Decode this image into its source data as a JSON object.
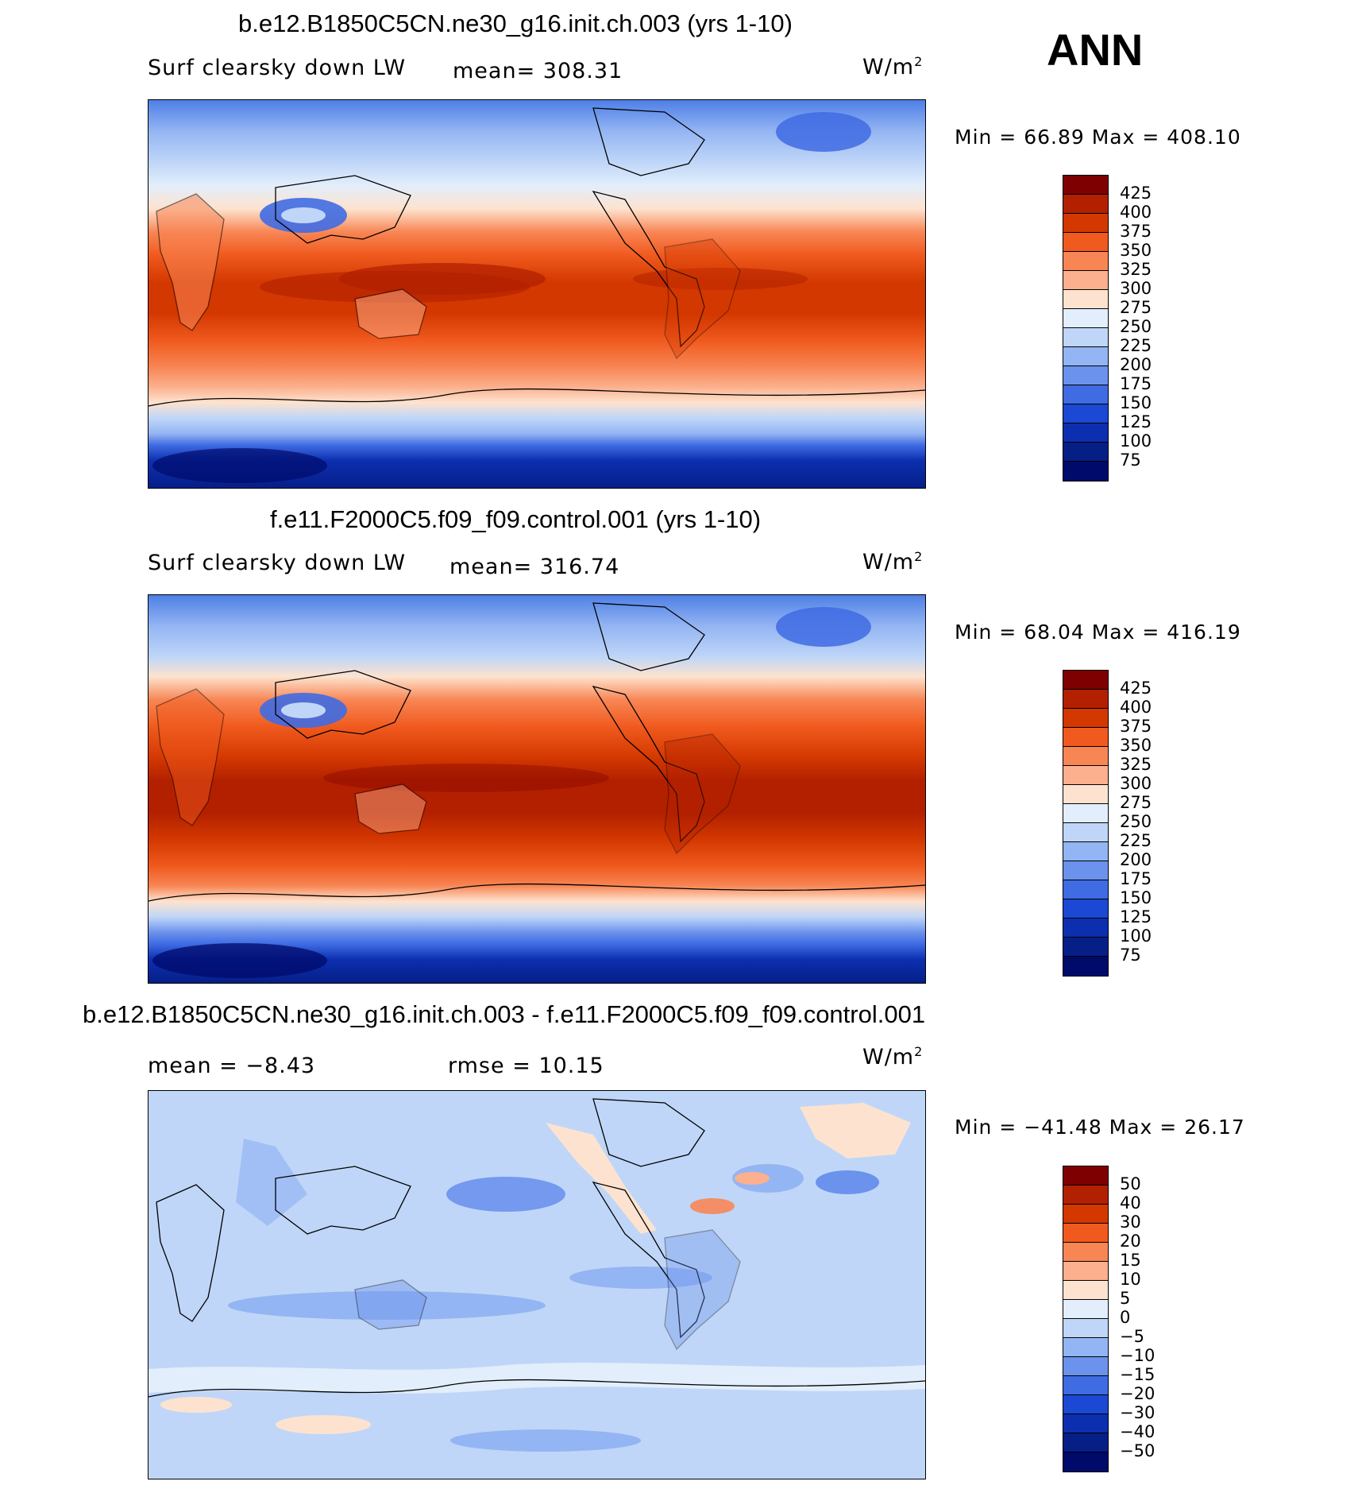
{
  "season": "ANN",
  "panels": [
    {
      "title": "b.e12.B1850C5CN.ne30_g16.init.ch.003 (yrs 1-10)",
      "left_label": "Surf clearsky down LW",
      "center_label": "mean= 308.31",
      "units": "W/m",
      "units_sup": "2",
      "minmax": "Min =   66.89 Max = 408.10"
    },
    {
      "title": "f.e11.F2000C5.f09_f09.control.001 (yrs 1-10)",
      "left_label": "Surf clearsky down LW",
      "center_label": "mean= 316.74",
      "units": "W/m",
      "units_sup": "2",
      "minmax": "Min =   68.04 Max = 416.19"
    },
    {
      "title": "b.e12.B1850C5CN.ne30_g16.init.ch.003 - f.e11.F2000C5.f09_f09.control.001",
      "left_label": "mean =   −8.43",
      "center_label": "rmse =   10.15",
      "units": "W/m",
      "units_sup": "2",
      "minmax": "Min = −41.48 Max =   26.17"
    }
  ],
  "chart_data": [
    {
      "type": "heatmap",
      "title": "b.e12.B1850C5CN.ne30_g16.init.ch.003 (yrs 1-10)",
      "variable": "Surf clearsky down LW",
      "units": "W/m2",
      "mean": 308.31,
      "min": 66.89,
      "max": 408.1,
      "colorbar_levels": [
        425,
        400,
        375,
        350,
        325,
        300,
        275,
        250,
        225,
        200,
        175,
        150,
        125,
        100,
        75
      ],
      "colorbar_labels": [
        "425",
        "400",
        "375",
        "350",
        "325",
        "300",
        "275",
        "250",
        "225",
        "200",
        "175",
        "150",
        "125",
        "100",
        "75"
      ],
      "colors": [
        "#7f0000",
        "#b22000",
        "#d33800",
        "#f05a1e",
        "#f88655",
        "#fcb08d",
        "#fde3cf",
        "#e2eefb",
        "#bfd6f8",
        "#94b5f3",
        "#6b92ec",
        "#3f6be3",
        "#1b49d4",
        "#0c2fb0",
        "#061f87",
        "#000a6b"
      ]
    },
    {
      "type": "heatmap",
      "title": "f.e11.F2000C5.f09_f09.control.001 (yrs 1-10)",
      "variable": "Surf clearsky down LW",
      "units": "W/m2",
      "mean": 316.74,
      "min": 68.04,
      "max": 416.19,
      "colorbar_levels": [
        425,
        400,
        375,
        350,
        325,
        300,
        275,
        250,
        225,
        200,
        175,
        150,
        125,
        100,
        75
      ],
      "colorbar_labels": [
        "425",
        "400",
        "375",
        "350",
        "325",
        "300",
        "275",
        "250",
        "225",
        "200",
        "175",
        "150",
        "125",
        "100",
        "75"
      ],
      "colors": [
        "#7f0000",
        "#b22000",
        "#d33800",
        "#f05a1e",
        "#f88655",
        "#fcb08d",
        "#fde3cf",
        "#e2eefb",
        "#bfd6f8",
        "#94b5f3",
        "#6b92ec",
        "#3f6be3",
        "#1b49d4",
        "#0c2fb0",
        "#061f87",
        "#000a6b"
      ]
    },
    {
      "type": "heatmap",
      "title": "b.e12.B1850C5CN.ne30_g16.init.ch.003 - f.e11.F2000C5.f09_f09.control.001",
      "units": "W/m2",
      "mean": -8.43,
      "rmse": 10.15,
      "min": -41.48,
      "max": 26.17,
      "colorbar_levels": [
        50,
        40,
        30,
        20,
        15,
        10,
        5,
        0,
        -5,
        -10,
        -15,
        -20,
        -30,
        -40,
        -50
      ],
      "colorbar_labels": [
        "50",
        "40",
        "30",
        "20",
        "15",
        "10",
        "5",
        "0",
        "−5",
        "−10",
        "−15",
        "−20",
        "−30",
        "−40",
        "−50"
      ],
      "colors": [
        "#7f0000",
        "#b22000",
        "#d33800",
        "#f05a1e",
        "#f88655",
        "#fcb08d",
        "#fde3cf",
        "#e2eefb",
        "#bfd6f8",
        "#94b5f3",
        "#6b92ec",
        "#3f6be3",
        "#1b49d4",
        "#0c2fb0",
        "#061f87",
        "#000a6b"
      ]
    }
  ]
}
